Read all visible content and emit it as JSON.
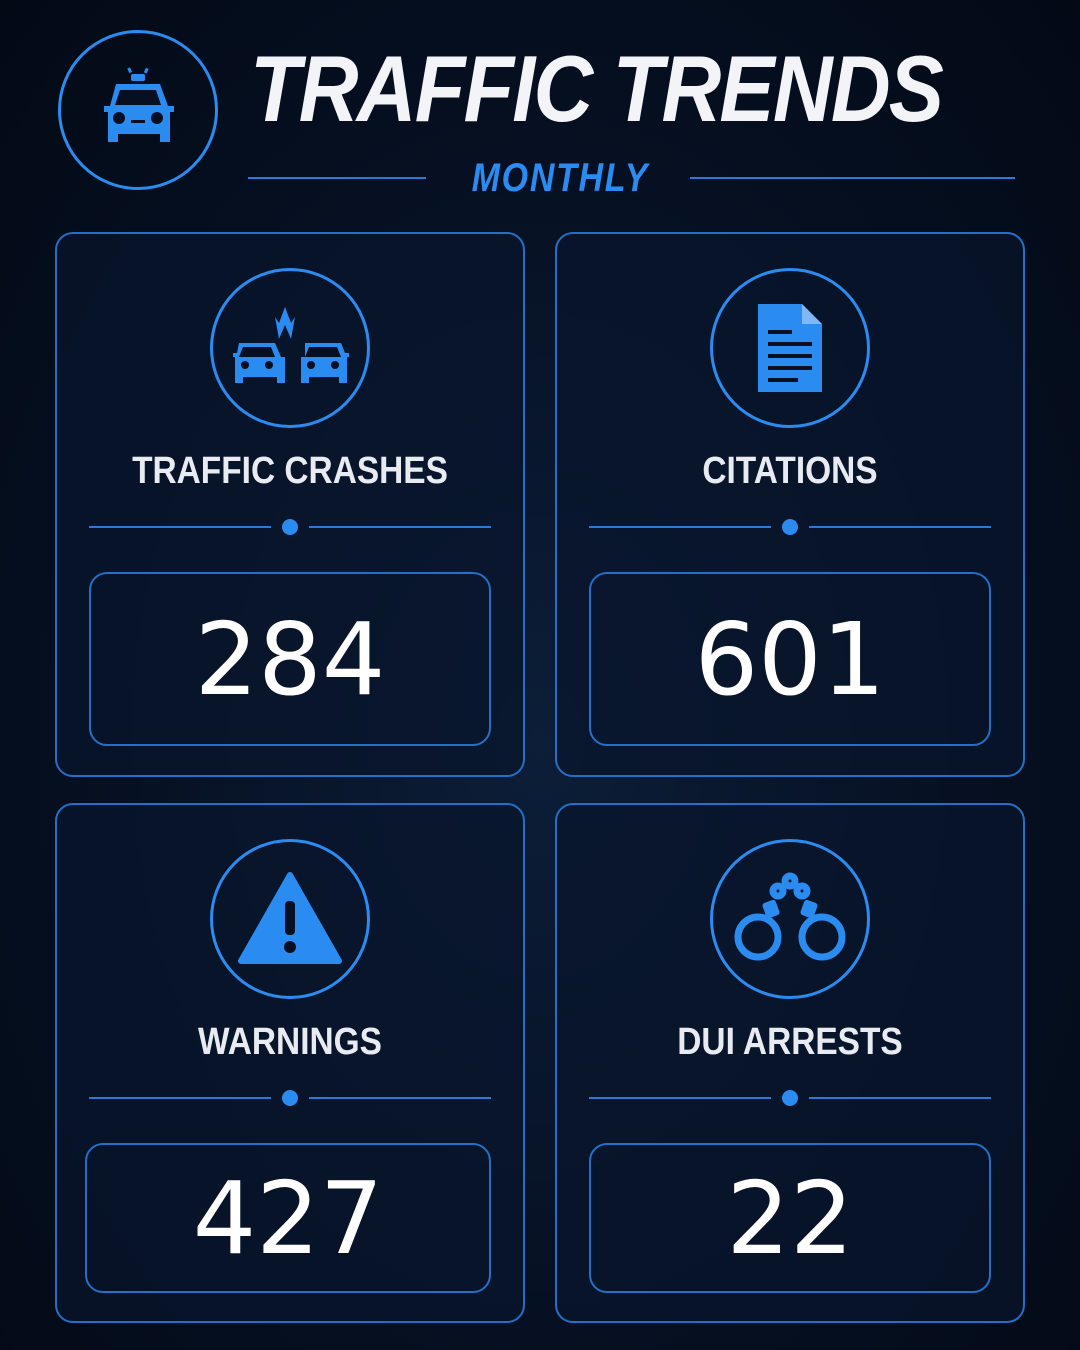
{
  "header": {
    "title": "TRAFFIC TRENDS",
    "subtitle": "MONTHLY",
    "logo_icon": "police-car-icon"
  },
  "colors": {
    "accent": "#2a8cf0",
    "background": "#050d1c",
    "text": "#ffffff"
  },
  "cards": [
    {
      "label": "TRAFFIC CRASHES",
      "value": "284",
      "icon": "car-crash-icon"
    },
    {
      "label": "CITATIONS",
      "value": "601",
      "icon": "document-icon"
    },
    {
      "label": "WARNINGS",
      "value": "427",
      "icon": "warning-icon"
    },
    {
      "label": "DUI ARRESTS",
      "value": "22",
      "icon": "handcuffs-icon"
    }
  ]
}
